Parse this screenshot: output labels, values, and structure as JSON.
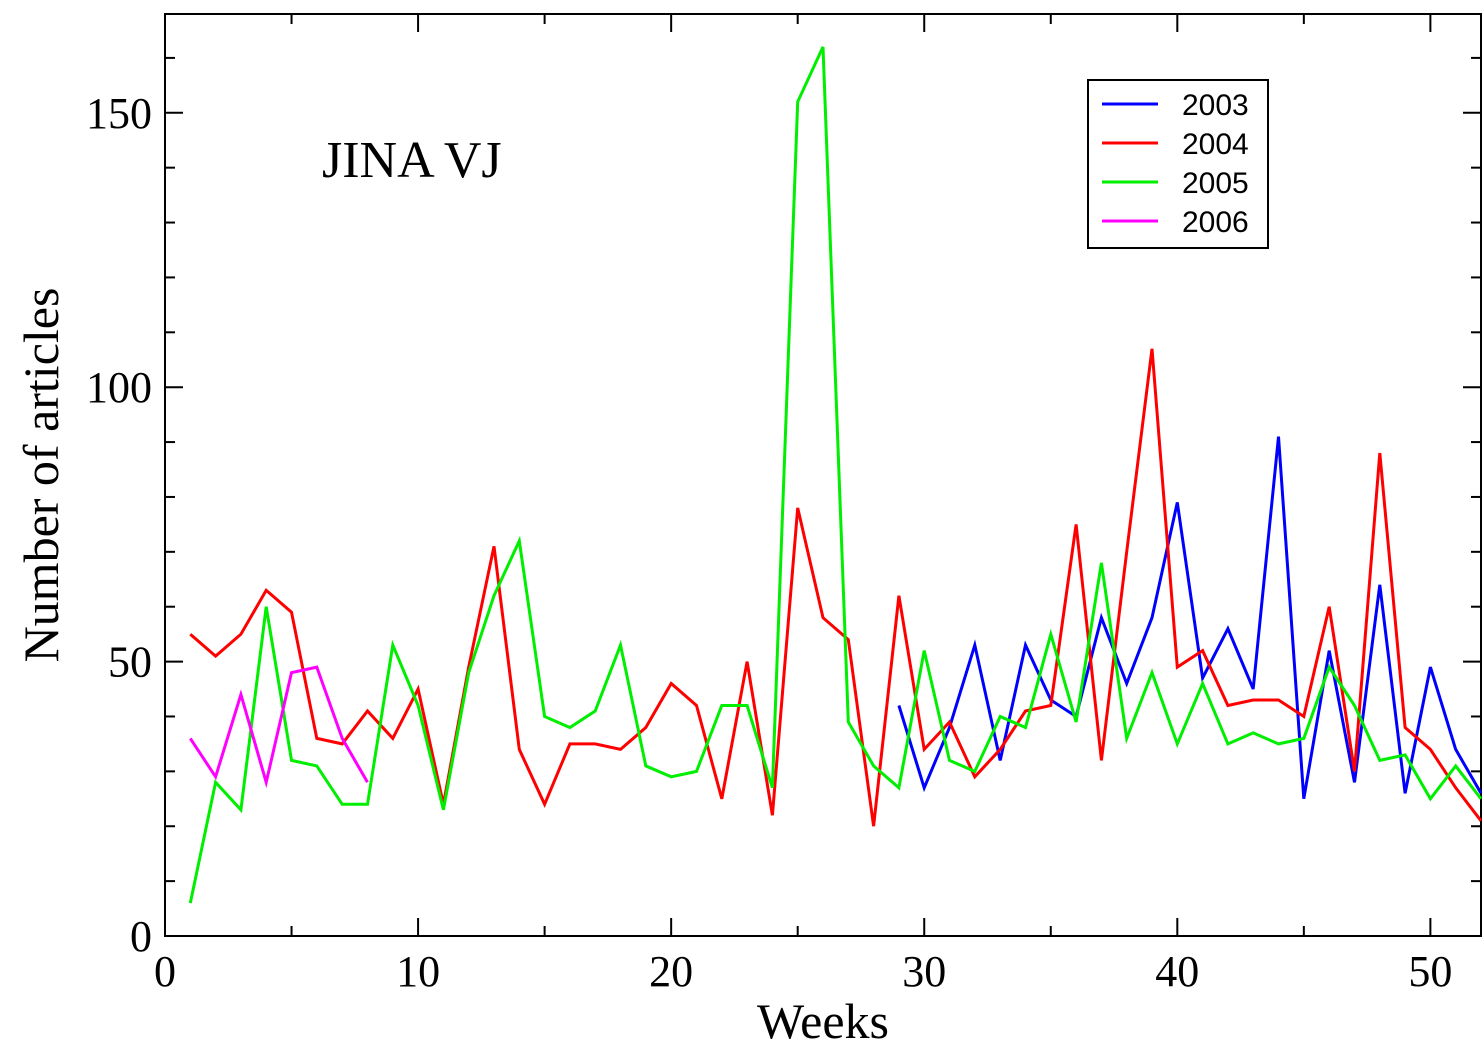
{
  "chart_data": {
    "type": "line",
    "annotation": "JINA VJ",
    "xlabel": "Weeks",
    "ylabel": "Number of articles",
    "xlim": [
      0,
      52
    ],
    "ylim": [
      0,
      168
    ],
    "xticks": [
      0,
      10,
      20,
      30,
      40,
      50
    ],
    "yticks": [
      0,
      50,
      100,
      150
    ],
    "grid": false,
    "legend": "top-right",
    "series": [
      {
        "name": "2003",
        "color": "#0000ff",
        "x": [
          29,
          30,
          31,
          32,
          33,
          34,
          35,
          36,
          37,
          38,
          39,
          40,
          41,
          42,
          43,
          44,
          45,
          46,
          47,
          48,
          49,
          50,
          51,
          52
        ],
        "y": [
          42,
          27,
          38,
          53,
          32,
          53,
          43,
          40,
          58,
          46,
          58,
          79,
          47,
          56,
          45,
          91,
          25,
          52,
          28,
          64,
          26,
          49,
          34,
          26
        ]
      },
      {
        "name": "2004",
        "color": "#ff0000",
        "x": [
          1,
          2,
          3,
          4,
          5,
          6,
          7,
          8,
          9,
          10,
          11,
          12,
          13,
          14,
          15,
          16,
          17,
          18,
          19,
          20,
          21,
          22,
          23,
          24,
          25,
          26,
          27,
          28,
          29,
          30,
          31,
          32,
          33,
          34,
          35,
          36,
          37,
          38,
          39,
          40,
          41,
          42,
          43,
          44,
          45,
          46,
          47,
          48,
          49,
          50,
          51,
          52
        ],
        "y": [
          55,
          51,
          55,
          63,
          59,
          36,
          35,
          41,
          36,
          45,
          24,
          49,
          71,
          34,
          24,
          35,
          35,
          34,
          38,
          46,
          42,
          25,
          50,
          22,
          78,
          58,
          54,
          20,
          62,
          34,
          39,
          29,
          34,
          41,
          42,
          75,
          32,
          70,
          107,
          49,
          52,
          42,
          43,
          43,
          40,
          60,
          30,
          88,
          38,
          34,
          27,
          21
        ]
      },
      {
        "name": "2005",
        "color": "#00ee00",
        "x": [
          1,
          2,
          3,
          4,
          5,
          6,
          7,
          8,
          9,
          10,
          11,
          12,
          13,
          14,
          15,
          16,
          17,
          18,
          19,
          20,
          21,
          22,
          23,
          24,
          25,
          26,
          27,
          28,
          29,
          30,
          31,
          32,
          33,
          34,
          35,
          36,
          37,
          38,
          39,
          40,
          41,
          42,
          43,
          44,
          45,
          46,
          47,
          48,
          49,
          50,
          51,
          52
        ],
        "y": [
          6,
          28,
          23,
          60,
          32,
          31,
          24,
          24,
          53,
          42,
          23,
          48,
          62,
          72,
          40,
          38,
          41,
          53,
          31,
          29,
          30,
          42,
          42,
          27,
          152,
          162,
          39,
          31,
          27,
          52,
          32,
          30,
          40,
          38,
          55,
          39,
          68,
          36,
          48,
          35,
          46,
          35,
          37,
          35,
          36,
          49,
          42,
          32,
          33,
          25,
          31,
          25
        ]
      },
      {
        "name": "2006",
        "color": "#ff00ff",
        "x": [
          1,
          2,
          3,
          4,
          5,
          6,
          7,
          8
        ],
        "y": [
          36,
          29,
          44,
          28,
          48,
          49,
          36,
          28
        ]
      }
    ]
  }
}
